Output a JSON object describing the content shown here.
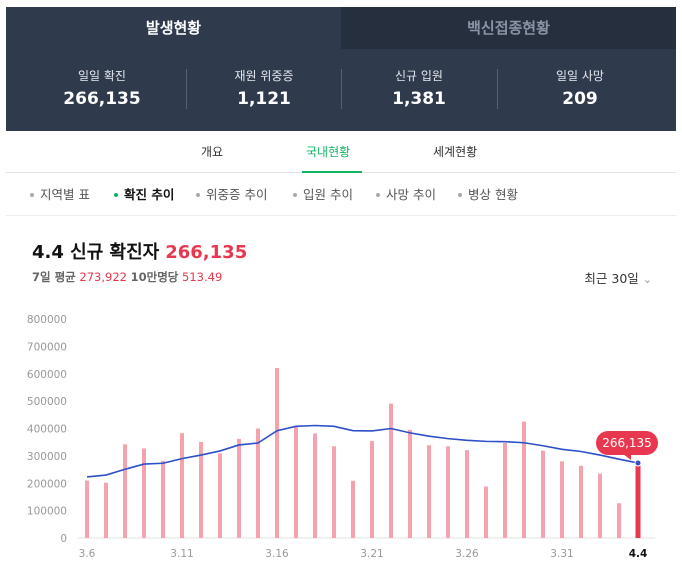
{
  "top_tabs": [
    "발생현황",
    "백신접종현황"
  ],
  "stats": [
    {
      "label": "일일 확진",
      "value": "266,135"
    },
    {
      "label": "재원 위중증",
      "value": "1,121"
    },
    {
      "label": "신규 입원",
      "value": "1,381"
    },
    {
      "label": "일일 사망",
      "value": "209"
    }
  ],
  "sub_tabs": [
    "개요",
    "국내현황",
    "세계현황"
  ],
  "chart_tabs": [
    "지역별 표",
    "확진 추이",
    "위중증 추이",
    "입원 추이",
    "사망 추이",
    "병상 현황"
  ],
  "header": {
    "title": "4.4 신규 확진자",
    "title_value": "266,135",
    "avg_label": "7일 평균",
    "avg_value": "273,922",
    "per100k_label": "10만명당",
    "per100k_value": "513.49",
    "range_label": "최근 30일"
  },
  "colors": {
    "bar": "#f4a3ae",
    "bar_highlight": "#e8384f",
    "avg_line": "#2d4fc7",
    "accent": "#12b564"
  },
  "chart_data": {
    "type": "bar",
    "categories": [
      "3.6",
      "3.7",
      "3.8",
      "3.9",
      "3.10",
      "3.11",
      "3.12",
      "3.13",
      "3.14",
      "3.15",
      "3.16",
      "3.17",
      "3.18",
      "3.19",
      "3.20",
      "3.21",
      "3.22",
      "3.23",
      "3.24",
      "3.25",
      "3.26",
      "3.27",
      "3.28",
      "3.29",
      "3.30",
      "3.31",
      "4.1",
      "4.2",
      "4.3",
      "4.4"
    ],
    "x_tick_labels": [
      "3.6",
      "3.11",
      "3.16",
      "3.21",
      "3.26",
      "3.31",
      "4.4"
    ],
    "series": [
      {
        "type": "bar",
        "values": [
          210000,
          202000,
          342000,
          327000,
          282000,
          383000,
          351000,
          309000,
          362000,
          400000,
          621000,
          407000,
          382000,
          335000,
          209000,
          354000,
          491000,
          395000,
          339000,
          335000,
          321000,
          188000,
          347000,
          425000,
          319000,
          280000,
          264000,
          235000,
          127000,
          266135
        ]
      },
      {
        "type": "line",
        "values": [
          223000,
          230000,
          251000,
          270000,
          273000,
          290000,
          303000,
          318000,
          340000,
          347000,
          392000,
          408000,
          411000,
          408000,
          392000,
          391000,
          400000,
          384000,
          372000,
          363000,
          357000,
          353000,
          352000,
          348000,
          337000,
          324000,
          316000,
          303000,
          288000,
          273922
        ]
      }
    ],
    "ylim": [
      0,
      800000
    ],
    "yticks": [
      "0",
      "100000",
      "200000",
      "300000",
      "400000",
      "500000",
      "600000",
      "700000",
      "800000"
    ],
    "tooltip": "266,135"
  }
}
